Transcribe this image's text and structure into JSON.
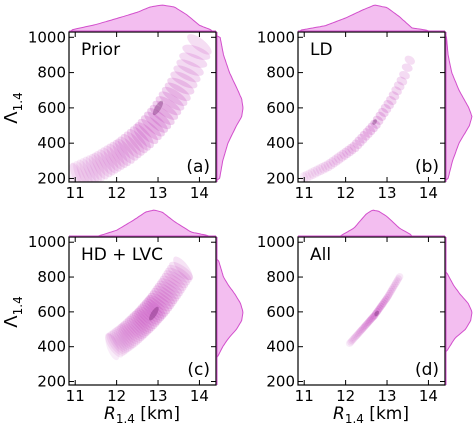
{
  "figure": {
    "shared_axes": {
      "xlabel_main": "R",
      "xlabel_sub": "1.4",
      "xlabel_unit": " [km]",
      "ylabel_main": "Λ",
      "ylabel_sub": "1.4",
      "xlim": [
        10.85,
        14.4
      ],
      "ylim": [
        180,
        1030
      ],
      "xticks": [
        11,
        12,
        13,
        14
      ],
      "yticks": [
        200,
        400,
        600,
        800,
        1000
      ]
    },
    "colors": {
      "kde": "#c13aba",
      "marginal_fill": "#f1b3ed",
      "marginal_line": "#d24fcc"
    }
  },
  "chart_data": [
    {
      "type": "heatmap",
      "kind": "2D KDE with marginal distributions",
      "title": "Prior",
      "panel_tag": "(a)",
      "x_variable": "R_1.4 [km]",
      "y_variable": "Λ_1.4",
      "xlim": [
        10.85,
        14.4
      ],
      "ylim": [
        180,
        1030
      ],
      "density": {
        "relation": [
          [
            11.0,
            205
          ],
          [
            11.6,
            270
          ],
          [
            12.2,
            355
          ],
          [
            12.7,
            450
          ],
          [
            13.1,
            560
          ],
          [
            13.5,
            700
          ],
          [
            13.8,
            840
          ],
          [
            14.0,
            960
          ]
        ],
        "mode": [
          13.0,
          600
        ],
        "x_span": [
          11.0,
          14.0
        ],
        "width": 0.4
      },
      "x_marginal": {
        "x": [
          10.9,
          11.5,
          12.0,
          12.5,
          12.8,
          13.1,
          13.4,
          13.7,
          14.0,
          14.3
        ],
        "density": [
          0.04,
          0.25,
          0.48,
          0.72,
          0.92,
          1.0,
          0.92,
          0.62,
          0.22,
          0.03
        ]
      },
      "y_marginal": {
        "y": [
          200,
          300,
          400,
          500,
          550,
          600,
          650,
          700,
          800,
          900,
          1000
        ],
        "density": [
          0.1,
          0.22,
          0.42,
          0.75,
          0.95,
          1.0,
          0.95,
          0.8,
          0.48,
          0.25,
          0.12
        ]
      }
    },
    {
      "type": "heatmap",
      "kind": "2D KDE with marginal distributions",
      "title": "LD",
      "panel_tag": "(b)",
      "x_variable": "R_1.4 [km]",
      "y_variable": "Λ_1.4",
      "xlim": [
        10.85,
        14.4
      ],
      "ylim": [
        180,
        1030
      ],
      "density": {
        "relation": [
          [
            11.0,
            205
          ],
          [
            11.6,
            275
          ],
          [
            12.2,
            375
          ],
          [
            12.7,
            500
          ],
          [
            13.1,
            640
          ],
          [
            13.4,
            770
          ],
          [
            13.55,
            870
          ]
        ],
        "mode": [
          12.7,
          520
        ],
        "x_span": [
          11.0,
          13.55
        ],
        "width": 0.15
      },
      "x_marginal": {
        "x": [
          10.9,
          11.5,
          12.0,
          12.4,
          12.7,
          13.0,
          13.3,
          13.6,
          14.0
        ],
        "density": [
          0.03,
          0.2,
          0.5,
          0.8,
          1.0,
          0.9,
          0.55,
          0.12,
          0.02
        ]
      },
      "y_marginal": {
        "y": [
          200,
          300,
          400,
          500,
          550,
          600,
          700,
          800,
          900,
          1000
        ],
        "density": [
          0.08,
          0.25,
          0.5,
          0.9,
          1.0,
          0.88,
          0.5,
          0.22,
          0.08,
          0.02
        ]
      }
    },
    {
      "type": "heatmap",
      "kind": "2D KDE with marginal distributions",
      "title": "HD + LVC",
      "panel_tag": "(c)",
      "x_variable": "R_1.4 [km]",
      "y_variable": "Λ_1.4",
      "xlim": [
        10.85,
        14.4
      ],
      "ylim": [
        180,
        1030
      ],
      "density": {
        "relation": [
          [
            11.9,
            400
          ],
          [
            12.3,
            470
          ],
          [
            12.7,
            560
          ],
          [
            13.0,
            640
          ],
          [
            13.3,
            740
          ],
          [
            13.6,
            850
          ]
        ],
        "mode": [
          12.9,
          590
        ],
        "x_span": [
          11.9,
          13.6
        ],
        "width": 0.38
      },
      "x_marginal": {
        "x": [
          11.6,
          12.0,
          12.4,
          12.7,
          12.9,
          13.1,
          13.4,
          13.8,
          14.2
        ],
        "density": [
          0.02,
          0.22,
          0.6,
          0.92,
          1.0,
          0.92,
          0.55,
          0.15,
          0.02
        ]
      },
      "y_marginal": {
        "y": [
          350,
          400,
          450,
          500,
          550,
          600,
          650,
          700,
          750,
          800,
          900
        ],
        "density": [
          0.05,
          0.22,
          0.45,
          0.75,
          0.95,
          1.0,
          0.9,
          0.7,
          0.45,
          0.25,
          0.05
        ]
      }
    },
    {
      "type": "heatmap",
      "kind": "2D KDE with marginal distributions",
      "title": "All",
      "panel_tag": "(d)",
      "x_variable": "R_1.4 [km]",
      "y_variable": "Λ_1.4",
      "xlim": [
        10.85,
        14.4
      ],
      "ylim": [
        180,
        1030
      ],
      "density": {
        "relation": [
          [
            12.1,
            420
          ],
          [
            12.4,
            500
          ],
          [
            12.7,
            580
          ],
          [
            13.0,
            680
          ],
          [
            13.3,
            800
          ]
        ],
        "mode": [
          12.75,
          590
        ],
        "x_span": [
          12.1,
          13.3
        ],
        "width": 0.1
      },
      "x_marginal": {
        "x": [
          11.9,
          12.2,
          12.5,
          12.65,
          12.8,
          13.0,
          13.3,
          13.6
        ],
        "density": [
          0.03,
          0.3,
          0.85,
          1.0,
          0.95,
          0.75,
          0.3,
          0.03
        ]
      },
      "y_marginal": {
        "y": [
          380,
          450,
          500,
          550,
          600,
          650,
          700,
          750,
          820
        ],
        "density": [
          0.05,
          0.35,
          0.75,
          0.95,
          1.0,
          0.85,
          0.55,
          0.3,
          0.05
        ]
      }
    }
  ]
}
